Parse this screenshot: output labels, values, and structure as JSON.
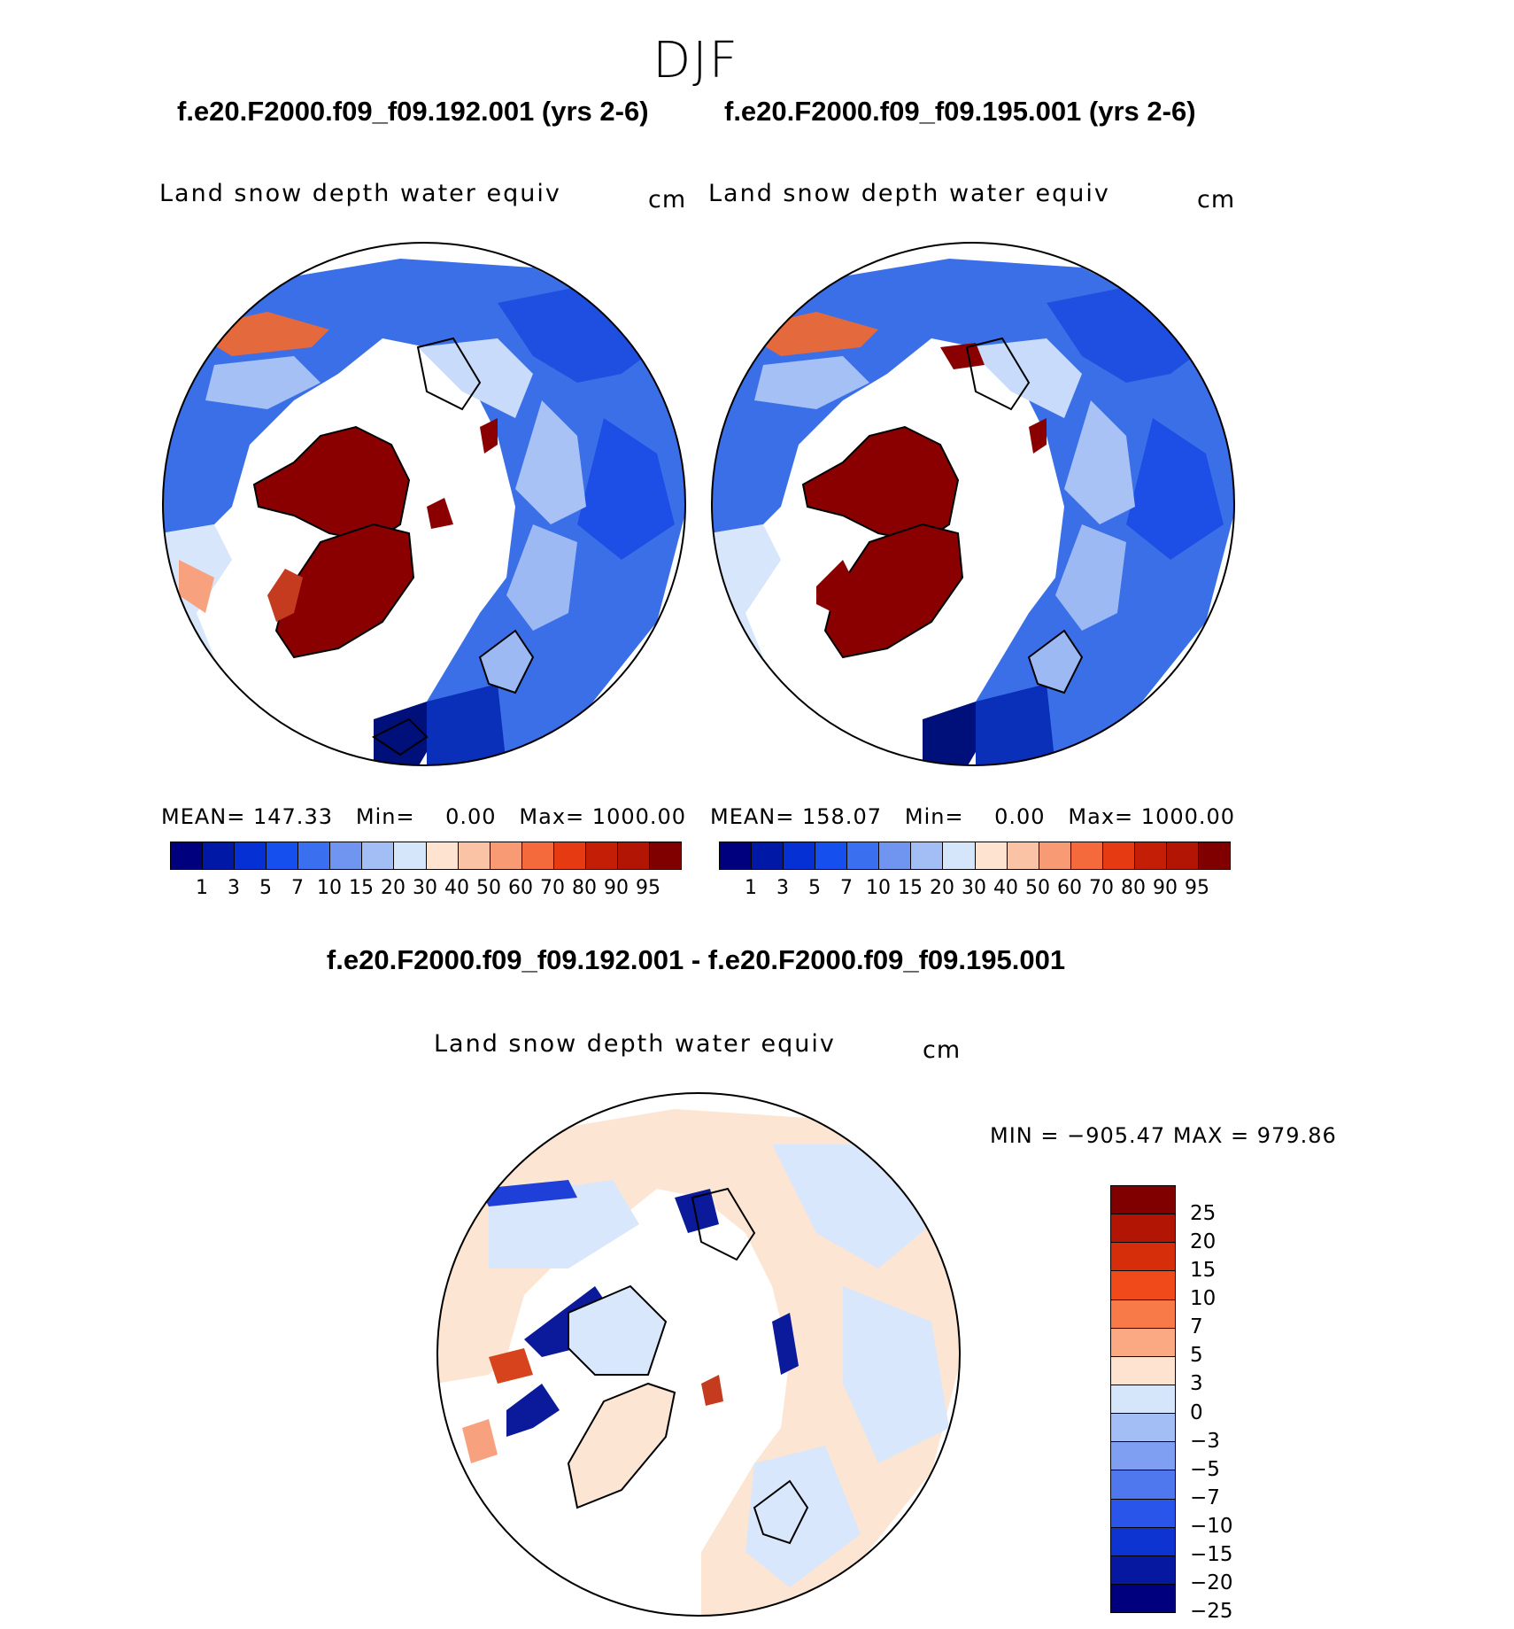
{
  "season": "DJF",
  "panels": [
    {
      "case_title": "f.e20.F2000.f09_f09.192.001 (yrs 2-6)",
      "variable": "Land snow depth water equiv",
      "units": "cm",
      "mean_label": "MEAN=",
      "mean": "147.33",
      "min_label": "Min=",
      "min": "0.00",
      "max_label": "Max=",
      "max": "1000.00"
    },
    {
      "case_title": "f.e20.F2000.f09_f09.195.001 (yrs 2-6)",
      "variable": "Land snow depth water equiv",
      "units": "cm",
      "mean_label": "MEAN=",
      "mean": "158.07",
      "min_label": "Min=",
      "min": "0.00",
      "max_label": "Max=",
      "max": "1000.00"
    }
  ],
  "colorbar_levels": [
    "1",
    "3",
    "5",
    "7",
    "10",
    "15",
    "20",
    "30",
    "40",
    "50",
    "60",
    "70",
    "80",
    "90",
    "95"
  ],
  "colorbar_colors": [
    "#00007f",
    "#0018a6",
    "#0530d4",
    "#1550ee",
    "#3a6ff0",
    "#6f95f0",
    "#a3bdf5",
    "#d5e5fa",
    "#fde3d0",
    "#fbc3a5",
    "#f89a73",
    "#f46a3c",
    "#e63a13",
    "#c41e06",
    "#b31505",
    "#800000"
  ],
  "difference": {
    "title": "f.e20.F2000.f09_f09.192.001 - f.e20.F2000.f09_f09.195.001",
    "variable": "Land snow depth water equiv",
    "units": "cm",
    "min_max_label": "MIN = −905.47 MAX = 979.86",
    "levels_top_to_bottom": [
      "25",
      "20",
      "15",
      "10",
      "7",
      "5",
      "3",
      "0",
      "−3",
      "−5",
      "−7",
      "−10",
      "−15",
      "−20",
      "−25"
    ],
    "colors_top_to_bottom": [
      "#800000",
      "#b31505",
      "#d62d0a",
      "#f04a1a",
      "#f87a48",
      "#fba982",
      "#fde3d0",
      "#d5e5fa",
      "#a3bdf5",
      "#7fa0f2",
      "#4f78ef",
      "#2a55ea",
      "#0d34d0",
      "#0618a0",
      "#00007f"
    ]
  }
}
